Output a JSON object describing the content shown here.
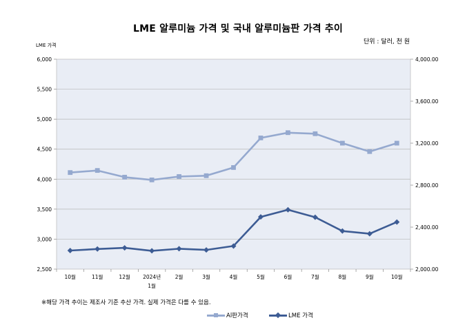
{
  "title": "LME 알루미늄 가격 및 국내 알루미늄판 가격 추이",
  "unit_label": "단위 : 달러, 천 원",
  "left_axis_label": "LME 가격",
  "footnote": "※해당 가격 추이는 제조사 기준 추산 가격. 실제 가격은 다를 수 있음.",
  "chart_data": {
    "type": "line",
    "categories": [
      "10월",
      "11월",
      "12월",
      "2024년\n1월",
      "2월",
      "3월",
      "4월",
      "5월",
      "6월",
      "7월",
      "8월",
      "9월",
      "10월"
    ],
    "series": [
      {
        "name": "Al판가격",
        "axis": "right",
        "color": "#95a9cf",
        "marker": "square",
        "values": [
          2920,
          2940,
          2876,
          2850,
          2882,
          2890,
          2968,
          3250,
          3300,
          3290,
          3200,
          3120,
          3200
        ]
      },
      {
        "name": "LME 가격",
        "axis": "left",
        "color": "#3d5c94",
        "marker": "diamond",
        "values": [
          2810,
          2835,
          2855,
          2805,
          2840,
          2820,
          2885,
          3370,
          3490,
          3365,
          3135,
          3090,
          3285
        ]
      }
    ],
    "y_left": {
      "min": 2500,
      "max": 6000,
      "ticks": [
        "2,500",
        "3,000",
        "3,500",
        "4,000",
        "4,500",
        "5,000",
        "5,500",
        "6,000"
      ]
    },
    "y_right": {
      "min": 2000,
      "max": 4000,
      "ticks": [
        "2,000.00",
        "2,400.00",
        "2,800.00",
        "3,200.00",
        "3,600.00",
        "4,000.00"
      ]
    },
    "grid": true,
    "legend": "bottom"
  }
}
